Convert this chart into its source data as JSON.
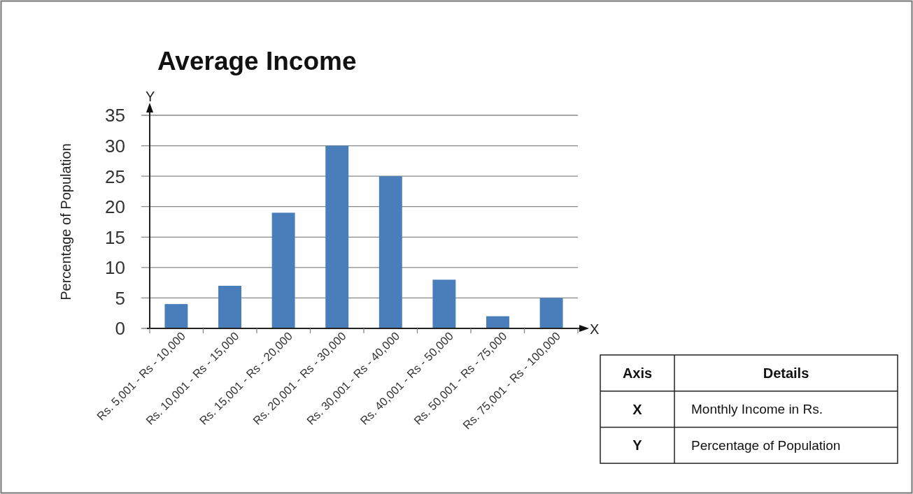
{
  "chart_data": [
    {
      "type": "bar",
      "title": "Average Income",
      "ylabel": "Percentage of Population",
      "categories": [
        "Rs. 5,001 - Rs - 10,000",
        "Rs. 10,001 - Rs - 15,000",
        "Rs. 15,001 - Rs - 20,000",
        "Rs. 20,001 - Rs - 30,000",
        "Rs. 30,001 - Rs - 40,000",
        "Rs. 40,001 - Rs - 50,000",
        "Rs. 50,001 - Rs - 75,000",
        "Rs. 75,001 - Rs - 100,000"
      ],
      "values": [
        4,
        7,
        19,
        30,
        25,
        8,
        2,
        5
      ],
      "color": "#4a7ebb",
      "ylim": [
        0,
        35
      ],
      "yticks": [
        0,
        5,
        10,
        15,
        20,
        25,
        30,
        35
      ],
      "grid": "y",
      "annotations": [
        "Y",
        "X"
      ]
    },
    {
      "type": "other",
      "annotations": [
        "Axis",
        "Details",
        "X",
        "Monthly Income in Rs.",
        "Y",
        "Percentage of Population"
      ]
    }
  ]
}
